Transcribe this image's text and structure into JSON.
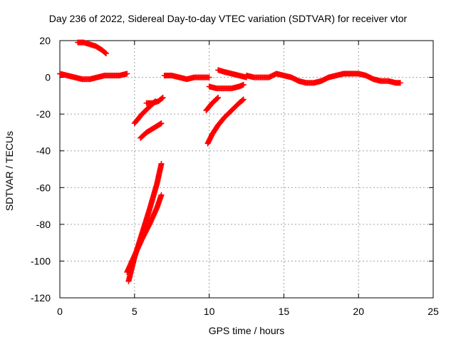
{
  "chart_data": {
    "type": "scatter",
    "title": "Day 236 of 2022, Sidereal Day-to-day VTEC variation (SDTVAR) for receiver vtor",
    "xlabel": "GPS time / hours",
    "ylabel": "SDTVAR / TECUs",
    "xlim": [
      0,
      25
    ],
    "ylim": [
      -120,
      20
    ],
    "xticks": [
      0,
      5,
      10,
      15,
      20,
      25
    ],
    "yticks": [
      -120,
      -100,
      -80,
      -60,
      -40,
      -20,
      0,
      20
    ],
    "grid": true,
    "marker": "plus",
    "color": "#ff0000",
    "series": [
      {
        "x": [
          0.0,
          0.5,
          1.0,
          1.5,
          2.0,
          2.5,
          3.0,
          3.5,
          4.0,
          4.5
        ],
        "y": [
          2,
          1,
          0,
          -1,
          -1,
          0,
          1,
          1,
          1,
          2
        ]
      },
      {
        "x": [
          1.2,
          1.6,
          2.0,
          2.4,
          2.8,
          3.1
        ],
        "y": [
          19,
          19,
          18,
          17,
          15,
          13
        ]
      },
      {
        "x": [
          4.6,
          5.0,
          5.5,
          6.0,
          6.5,
          6.8
        ],
        "y": [
          -111,
          -98,
          -85,
          -72,
          -58,
          -47
        ]
      },
      {
        "x": [
          4.5,
          5.0,
          5.5,
          6.0,
          6.5,
          6.8
        ],
        "y": [
          -106,
          -97,
          -88,
          -80,
          -71,
          -64
        ]
      },
      {
        "x": [
          5.0,
          5.5,
          6.0,
          6.4
        ],
        "y": [
          -25,
          -20,
          -16,
          -13
        ]
      },
      {
        "x": [
          5.8,
          6.2,
          6.6,
          6.9
        ],
        "y": [
          -14,
          -14,
          -13,
          -11
        ]
      },
      {
        "x": [
          5.4,
          5.8,
          6.2,
          6.6,
          6.8
        ],
        "y": [
          -33,
          -30,
          -28,
          -26,
          -25
        ]
      },
      {
        "x": [
          7.0,
          7.5,
          8.0,
          8.5,
          9.0,
          9.5,
          10.0
        ],
        "y": [
          1,
          1,
          0,
          -1,
          0,
          0,
          0
        ]
      },
      {
        "x": [
          9.9,
          10.2,
          10.6,
          11.0,
          11.5,
          12.0,
          12.3
        ],
        "y": [
          -36,
          -31,
          -26,
          -22,
          -18,
          -14,
          -12
        ]
      },
      {
        "x": [
          9.8,
          10.2,
          10.6
        ],
        "y": [
          -18,
          -14,
          -11
        ]
      },
      {
        "x": [
          10.0,
          10.5,
          11.0,
          11.5,
          12.0,
          12.3
        ],
        "y": [
          -5,
          -6,
          -6,
          -6,
          -5,
          -4
        ]
      },
      {
        "x": [
          10.6,
          11.0,
          11.5,
          12.0,
          12.5
        ],
        "y": [
          4,
          3,
          2,
          1,
          0
        ]
      },
      {
        "x": [
          12.5,
          13.0,
          13.5,
          14.0,
          14.5,
          15.0,
          15.5,
          16.0,
          16.5,
          17.0,
          17.5,
          18.0,
          18.5,
          19.0,
          19.5,
          20.0,
          20.5,
          21.0,
          21.5,
          22.0,
          22.5,
          22.8
        ],
        "y": [
          1,
          0,
          0,
          0,
          2,
          1,
          0,
          -2,
          -3,
          -3,
          -2,
          0,
          1,
          2,
          2,
          2,
          1,
          -1,
          -2,
          -2,
          -3,
          -3
        ]
      }
    ]
  }
}
